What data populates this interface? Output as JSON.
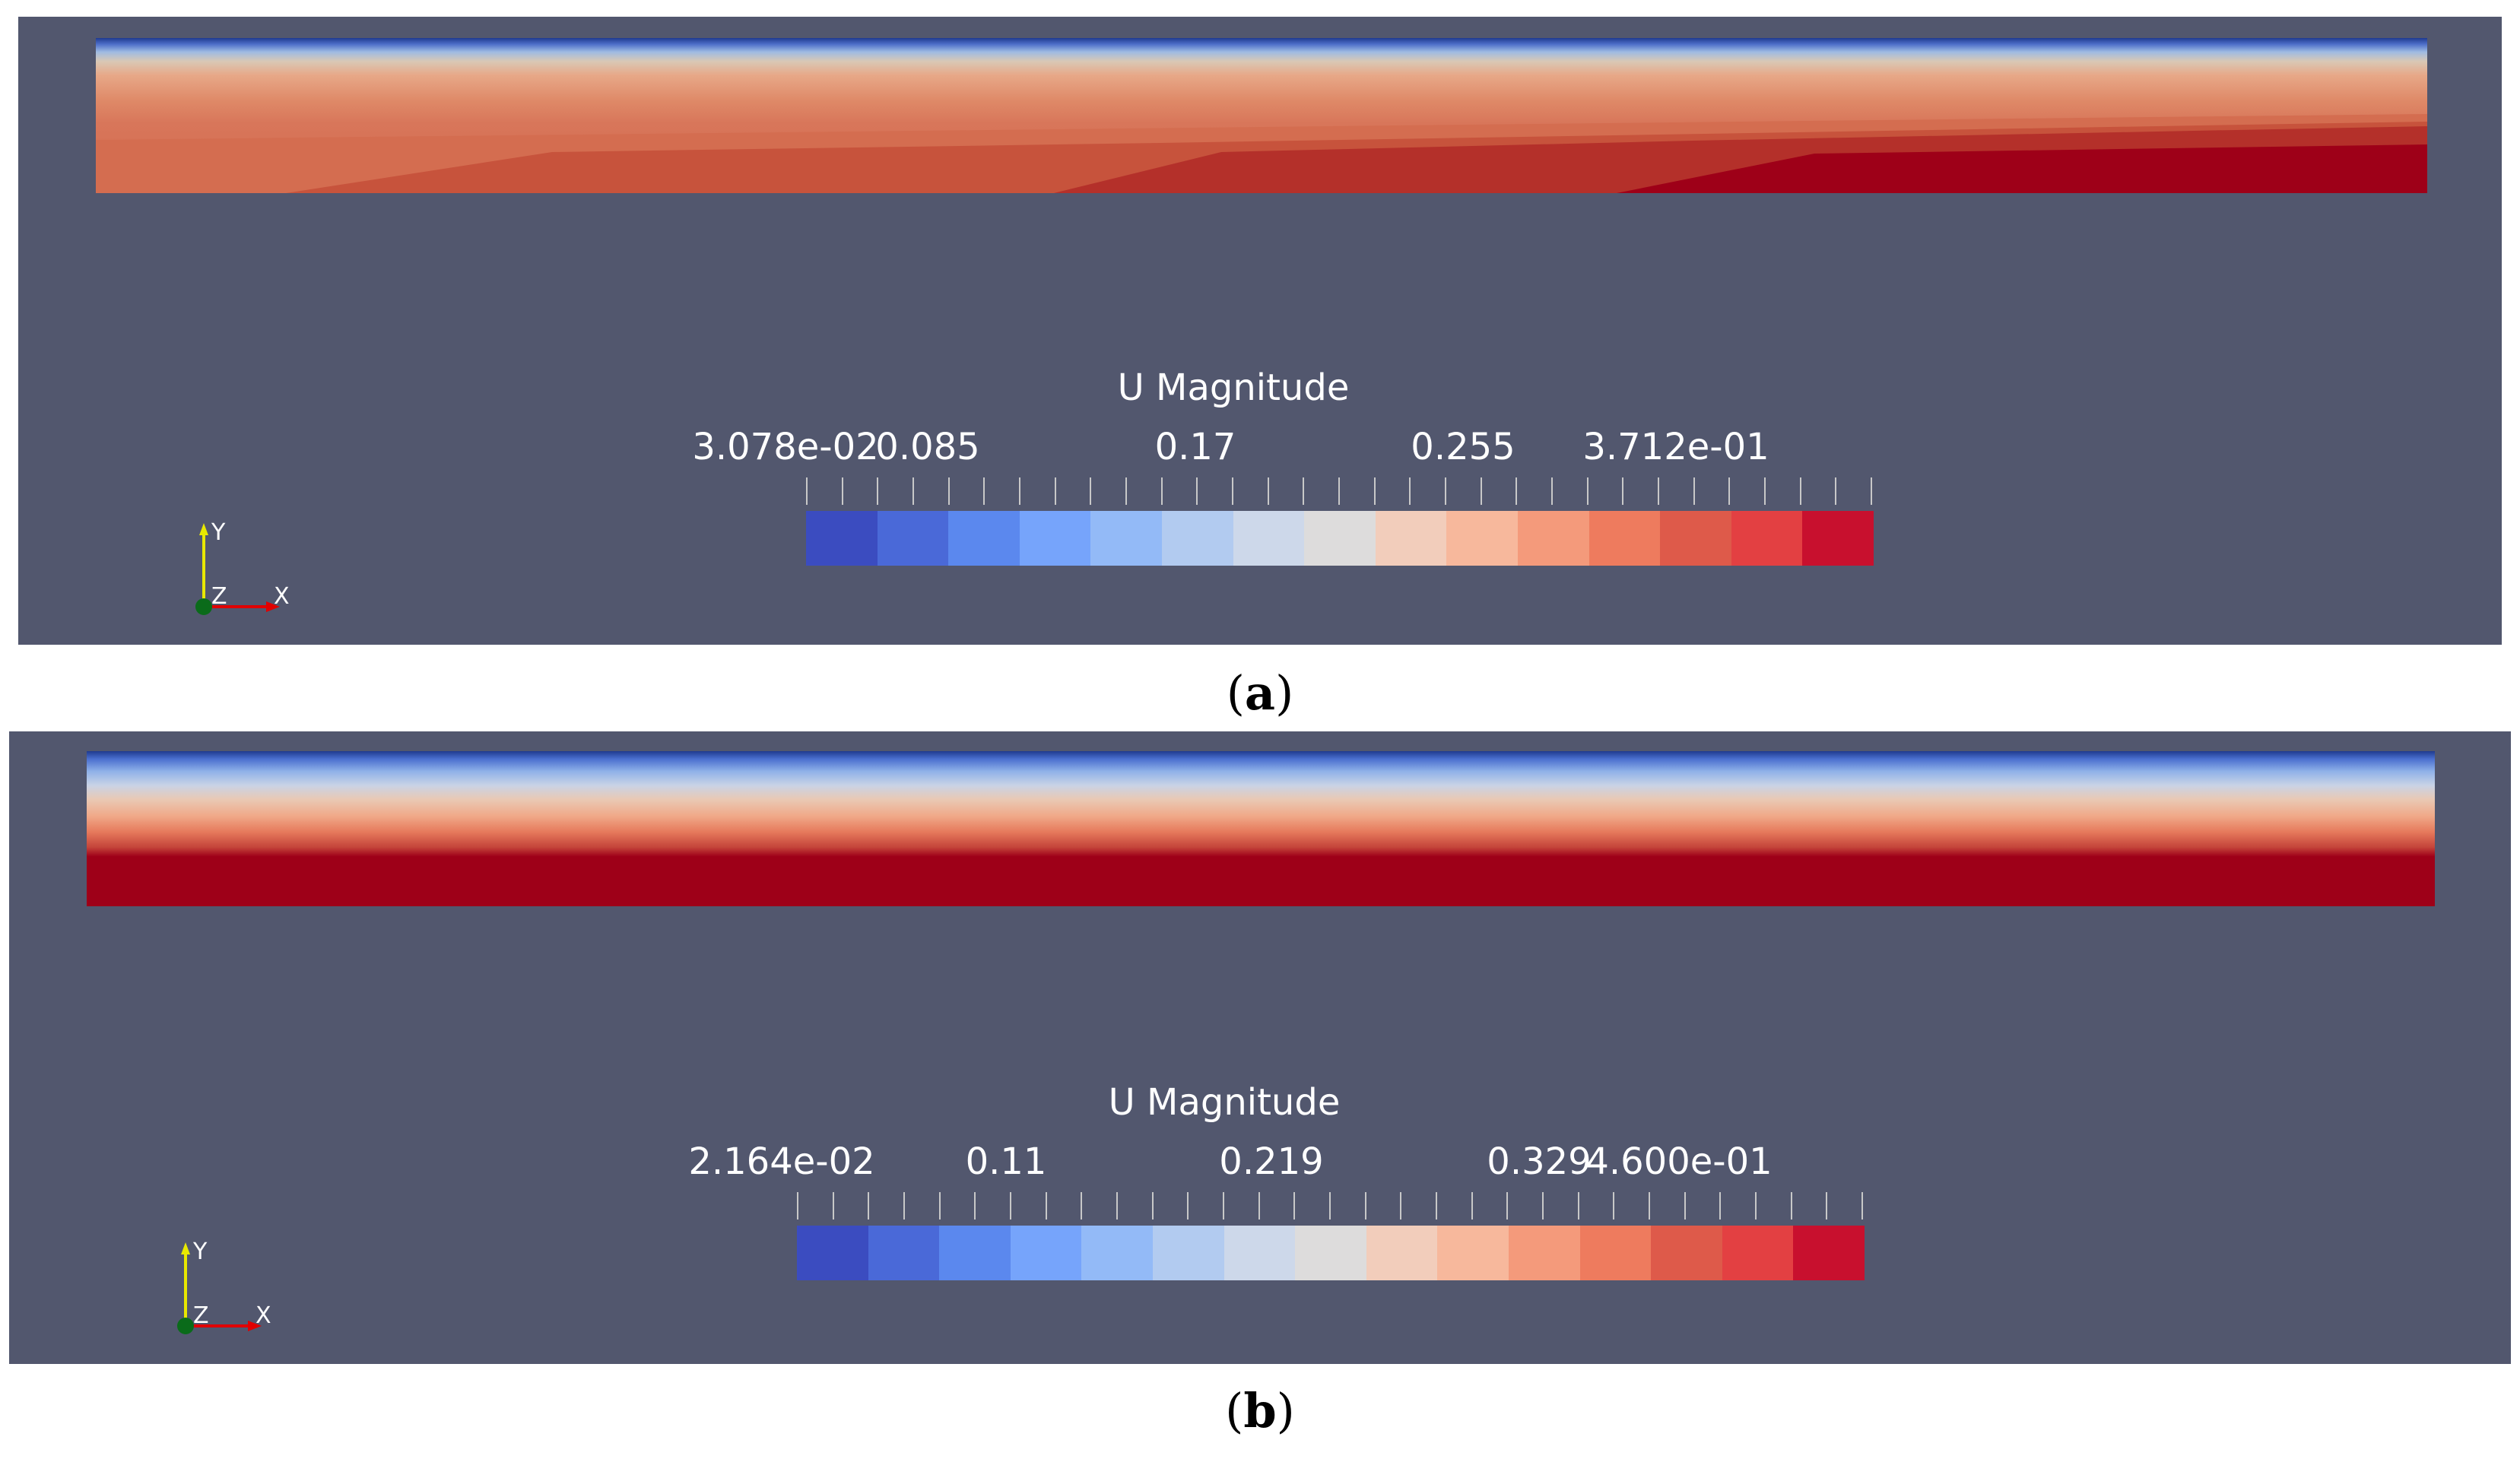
{
  "colormap": [
    "#3b4cc0",
    "#4a69d8",
    "#5b88ee",
    "#76a4fb",
    "#93baf7",
    "#b2cbf0",
    "#cdd8ea",
    "#dddcdc",
    "#f2cdbb",
    "#f7b89c",
    "#f49a7b",
    "#ee7b5e",
    "#de5a4a",
    "#e34042",
    "#c8102e"
  ],
  "panels": [
    {
      "id": "a",
      "caption_letter": "a",
      "colorbar": {
        "title": "U Magnitude",
        "labels": [
          "3.078e-02",
          "0.085",
          "0.17",
          "0.255",
          "3.712e-01"
        ],
        "range": [
          0.03078,
          0.3712
        ]
      },
      "axes": {
        "y_label": "Y",
        "z_label": "Z",
        "x_label": "X"
      }
    },
    {
      "id": "b",
      "caption_letter": "b",
      "colorbar": {
        "title": "U Magnitude",
        "labels": [
          "2.164e-02",
          "0.11",
          "0.219",
          "0.329",
          "4.600e-01"
        ],
        "range": [
          0.02164,
          0.46
        ]
      },
      "axes": {
        "y_label": "Y",
        "z_label": "Z",
        "x_label": "X"
      }
    }
  ]
}
